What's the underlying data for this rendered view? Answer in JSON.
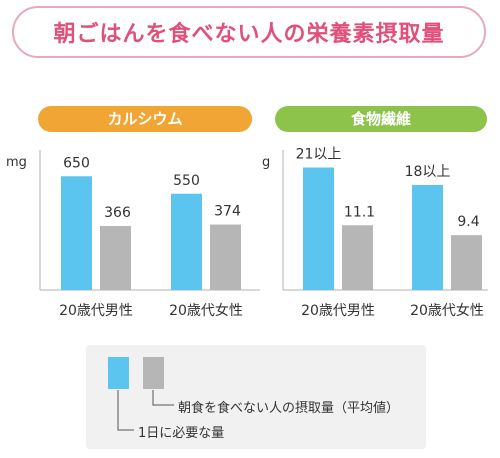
{
  "title": "朝ごはんを食べない人の栄養素摂取量",
  "colors": {
    "required": "#5bc5f0",
    "intake": "#b6b6b6",
    "calcium_header": "#f0a535",
    "fiber_header": "#8dc34a",
    "title_text": "#e0507a",
    "title_border": "#e8a9b8"
  },
  "legend": {
    "intake_label": "朝食を食べない人の摂取量（平均値）",
    "required_label": "1日に必要な量"
  },
  "chart_data": [
    {
      "type": "bar",
      "title": "カルシウム",
      "ylabel": "mg",
      "categories": [
        "20歳代男性",
        "20歳代女性"
      ],
      "series": [
        {
          "name": "1日に必要な量",
          "values": [
            650,
            550
          ],
          "labels": [
            "650",
            "550"
          ]
        },
        {
          "name": "朝食を食べない人の摂取量（平均値）",
          "values": [
            366,
            374
          ],
          "labels": [
            "366",
            "374"
          ]
        }
      ],
      "ylim": [
        0,
        800
      ]
    },
    {
      "type": "bar",
      "title": "食物繊維",
      "ylabel": "g",
      "categories": [
        "20歳代男性",
        "20歳代女性"
      ],
      "series": [
        {
          "name": "1日に必要な量",
          "values": [
            21,
            18
          ],
          "labels": [
            "21以上",
            "18以上"
          ]
        },
        {
          "name": "朝食を食べない人の摂取量（平均値）",
          "values": [
            11.1,
            9.4
          ],
          "labels": [
            "11.1",
            "9.4"
          ]
        }
      ],
      "ylim": [
        0,
        24
      ]
    }
  ]
}
